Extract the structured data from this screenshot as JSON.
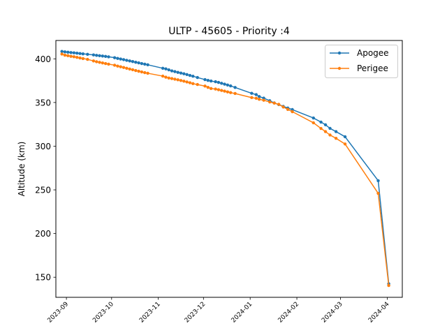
{
  "chart_data": {
    "type": "line",
    "title": "ULTP - 45605 - Priority :4",
    "xlabel": "",
    "ylabel": "Altitude (km)",
    "x_ticks": [
      "2023-09",
      "2023-10",
      "2023-11",
      "2023-12",
      "2024-01",
      "2024-02",
      "2024-03",
      "2024-04"
    ],
    "y_ticks": [
      150,
      200,
      250,
      300,
      350,
      400
    ],
    "xlim": [
      "2023-08-25",
      "2024-04-11"
    ],
    "ylim": [
      127,
      421
    ],
    "legend_position": "top-right",
    "grid": false,
    "series": [
      {
        "name": "Apogee",
        "color": "#1f77b4",
        "points": [
          [
            "2023-08-29",
            408.5
          ],
          [
            "2023-08-31",
            408.0
          ],
          [
            "2023-09-02",
            407.6
          ],
          [
            "2023-09-04",
            407.2
          ],
          [
            "2023-09-06",
            406.9
          ],
          [
            "2023-09-08",
            406.5
          ],
          [
            "2023-09-10",
            406.1
          ],
          [
            "2023-09-12",
            405.7
          ],
          [
            "2023-09-15",
            405.2
          ],
          [
            "2023-09-19",
            404.5
          ],
          [
            "2023-09-21",
            404.0
          ],
          [
            "2023-09-23",
            403.6
          ],
          [
            "2023-09-25",
            403.2
          ],
          [
            "2023-09-27",
            402.8
          ],
          [
            "2023-09-29",
            402.3
          ],
          [
            "2023-10-03",
            401.3
          ],
          [
            "2023-10-05",
            400.5
          ],
          [
            "2023-10-07",
            399.8
          ],
          [
            "2023-10-09",
            399.1
          ],
          [
            "2023-10-11",
            398.3
          ],
          [
            "2023-10-13",
            397.6
          ],
          [
            "2023-10-15",
            396.9
          ],
          [
            "2023-10-17",
            396.1
          ],
          [
            "2023-10-19",
            395.4
          ],
          [
            "2023-10-21",
            394.6
          ],
          [
            "2023-10-23",
            393.9
          ],
          [
            "2023-10-25",
            393.2
          ],
          [
            "2023-11-04",
            389.2
          ],
          [
            "2023-11-06",
            388.5
          ],
          [
            "2023-11-08",
            387.4
          ],
          [
            "2023-11-10",
            386.2
          ],
          [
            "2023-11-12",
            385.4
          ],
          [
            "2023-11-14",
            384.5
          ],
          [
            "2023-11-16",
            383.7
          ],
          [
            "2023-11-18",
            382.9
          ],
          [
            "2023-11-20",
            382.0
          ],
          [
            "2023-11-22",
            381.0
          ],
          [
            "2023-11-24",
            380.1
          ],
          [
            "2023-11-27",
            378.6
          ],
          [
            "2023-12-02",
            376.2
          ],
          [
            "2023-12-04",
            375.3
          ],
          [
            "2023-12-06",
            374.6
          ],
          [
            "2023-12-09",
            373.8
          ],
          [
            "2023-12-11",
            373.0
          ],
          [
            "2023-12-13",
            372.0
          ],
          [
            "2023-12-15",
            371.0
          ],
          [
            "2023-12-17",
            370.0
          ],
          [
            "2023-12-19",
            369.0
          ],
          [
            "2023-12-22",
            367.2
          ],
          [
            "2024-01-02",
            360.5
          ],
          [
            "2024-01-05",
            359.0
          ],
          [
            "2024-01-07",
            356.8
          ],
          [
            "2024-01-10",
            355.0
          ],
          [
            "2024-01-14",
            352.0
          ],
          [
            "2024-01-17",
            349.5
          ],
          [
            "2024-01-20",
            347.6
          ],
          [
            "2024-01-23",
            345.5
          ],
          [
            "2024-01-26",
            343.6
          ],
          [
            "2024-01-29",
            341.9
          ],
          [
            "2024-02-12",
            332.3
          ],
          [
            "2024-02-17",
            327.6
          ],
          [
            "2024-02-20",
            324.5
          ],
          [
            "2024-02-23",
            320.4
          ],
          [
            "2024-02-27",
            316.7
          ],
          [
            "2024-03-04",
            310.8
          ],
          [
            "2024-03-26",
            260.5
          ],
          [
            "2024-04-02",
            142.5
          ]
        ]
      },
      {
        "name": "Perigee",
        "color": "#ff7f0e",
        "points": [
          [
            "2023-08-29",
            405.5
          ],
          [
            "2023-08-31",
            404.2
          ],
          [
            "2023-09-02",
            403.6
          ],
          [
            "2023-09-04",
            402.9
          ],
          [
            "2023-09-06",
            402.4
          ],
          [
            "2023-09-08",
            401.7
          ],
          [
            "2023-09-10",
            401.0
          ],
          [
            "2023-09-12",
            400.3
          ],
          [
            "2023-09-15",
            399.4
          ],
          [
            "2023-09-19",
            397.6
          ],
          [
            "2023-09-21",
            396.7
          ],
          [
            "2023-09-23",
            396.0
          ],
          [
            "2023-09-25",
            395.3
          ],
          [
            "2023-09-27",
            394.6
          ],
          [
            "2023-09-29",
            393.9
          ],
          [
            "2023-10-03",
            392.7
          ],
          [
            "2023-10-05",
            391.7
          ],
          [
            "2023-10-07",
            390.9
          ],
          [
            "2023-10-09",
            390.1
          ],
          [
            "2023-10-11",
            389.2
          ],
          [
            "2023-10-13",
            388.3
          ],
          [
            "2023-10-15",
            387.5
          ],
          [
            "2023-10-17",
            386.6
          ],
          [
            "2023-10-19",
            385.8
          ],
          [
            "2023-10-21",
            385.0
          ],
          [
            "2023-10-23",
            384.2
          ],
          [
            "2023-10-25",
            383.5
          ],
          [
            "2023-11-04",
            380.2
          ],
          [
            "2023-11-06",
            379.0
          ],
          [
            "2023-11-08",
            378.0
          ],
          [
            "2023-11-10",
            377.4
          ],
          [
            "2023-11-12",
            376.7
          ],
          [
            "2023-11-14",
            376.0
          ],
          [
            "2023-11-16",
            375.2
          ],
          [
            "2023-11-18",
            374.4
          ],
          [
            "2023-11-20",
            373.5
          ],
          [
            "2023-11-22",
            372.6
          ],
          [
            "2023-11-24",
            371.6
          ],
          [
            "2023-11-27",
            370.6
          ],
          [
            "2023-12-02",
            368.8
          ],
          [
            "2023-12-04",
            367.3
          ],
          [
            "2023-12-06",
            366.0
          ],
          [
            "2023-12-09",
            365.4
          ],
          [
            "2023-12-11",
            364.6
          ],
          [
            "2023-12-13",
            363.8
          ],
          [
            "2023-12-15",
            363.0
          ],
          [
            "2023-12-17",
            362.1
          ],
          [
            "2023-12-19",
            361.3
          ],
          [
            "2023-12-22",
            360.3
          ],
          [
            "2024-01-02",
            355.6
          ],
          [
            "2024-01-05",
            354.8
          ],
          [
            "2024-01-07",
            353.7
          ],
          [
            "2024-01-10",
            352.6
          ],
          [
            "2024-01-14",
            350.6
          ],
          [
            "2024-01-17",
            349.3
          ],
          [
            "2024-01-20",
            347.9
          ],
          [
            "2024-01-23",
            344.8
          ],
          [
            "2024-01-26",
            342.1
          ],
          [
            "2024-01-29",
            339.5
          ],
          [
            "2024-02-12",
            326.8
          ],
          [
            "2024-02-17",
            320.3
          ],
          [
            "2024-02-20",
            316.7
          ],
          [
            "2024-02-23",
            312.8
          ],
          [
            "2024-02-27",
            309.0
          ],
          [
            "2024-03-04",
            302.5
          ],
          [
            "2024-03-26",
            246.0
          ],
          [
            "2024-04-02",
            140.5
          ]
        ]
      }
    ]
  }
}
